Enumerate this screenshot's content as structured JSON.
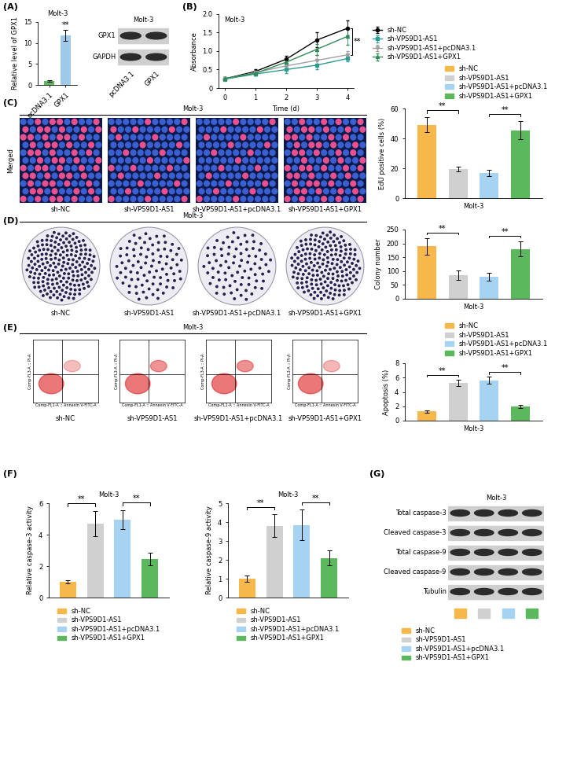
{
  "chart_data": [
    {
      "type": "bar",
      "panel_label": "(A)",
      "title": "Molt-3",
      "y_label": "Relative level of GPX1",
      "categories": [
        "pcDNA3.1",
        "GPX1"
      ],
      "values": [
        1.0,
        11.8
      ],
      "errors": [
        0.2,
        1.3
      ],
      "colors": [
        "#5cb85c",
        "#9ecae9"
      ],
      "ylim": [
        0,
        15
      ],
      "yticks": [
        0,
        5,
        10,
        15
      ],
      "annotations": [
        {
          "category": 1,
          "text": "**"
        }
      ]
    },
    {
      "type": "line",
      "panel_label": "(B)",
      "title": "Molt-3",
      "x_label": "Time (d)",
      "y_label": "Absorbance",
      "x": [
        0,
        1,
        2,
        3,
        4
      ],
      "xlim": [
        -0.2,
        4.2
      ],
      "xticks": [
        0,
        1,
        2,
        3,
        4
      ],
      "ylim": [
        0,
        2.0
      ],
      "yticks": [
        0,
        0.5,
        {
          "value": 1.0,
          "label": "1.0"
        },
        1.5,
        {
          "value": 2.0,
          "label": "2.0"
        }
      ],
      "legend": "right",
      "series": [
        {
          "name": "sh-NC",
          "color": "#000000",
          "marker": "o",
          "values": [
            0.25,
            0.45,
            0.78,
            1.3,
            1.62
          ],
          "errors": [
            0.04,
            0.06,
            0.1,
            0.2,
            0.2
          ]
        },
        {
          "name": "sh-VPS9D1-AS1",
          "color": "#2a9d8f",
          "marker": "s",
          "values": [
            0.24,
            0.38,
            0.5,
            0.62,
            0.8
          ],
          "errors": [
            0.03,
            0.05,
            0.1,
            0.12,
            0.08
          ]
        },
        {
          "name": "sh-VPS9D1-AS1+pcDNA3.1",
          "color": "#a0a0a0",
          "marker": "v",
          "values": [
            0.25,
            0.42,
            0.6,
            0.75,
            0.9
          ],
          "errors": [
            0.04,
            0.05,
            0.12,
            0.15,
            0.1
          ]
        },
        {
          "name": "sh-VPS9D1-AS1+GPX1",
          "color": "#2e8b57",
          "marker": "^",
          "values": [
            0.26,
            0.4,
            0.7,
            1.05,
            1.4
          ],
          "errors": [
            0.04,
            0.05,
            0.1,
            0.15,
            0.22
          ]
        }
      ],
      "significance": [
        {
          "series": [
            0,
            2
          ],
          "label": "**"
        }
      ]
    },
    {
      "type": "bar",
      "x_label": "Molt-3",
      "y_label": "EdU positive cells (%)",
      "categories": [
        "sh-NC",
        "sh-VPS9D1-AS1",
        "sh-VPS9D1-AS1+pcDNA3.1",
        "sh-VPS9D1-AS1+GPX1"
      ],
      "values": [
        49,
        19.5,
        17,
        45.5
      ],
      "errors": [
        5,
        1.5,
        2,
        6
      ],
      "colors": [
        "#f7b84b",
        "#d0d0d0",
        "#a6d3f2",
        "#5cb85c"
      ],
      "ylim": [
        0,
        60
      ],
      "yticks": [
        0,
        20,
        40,
        60
      ],
      "tick_labels": "y",
      "legend": "top",
      "significance": [
        {
          "pair": [
            0,
            1
          ],
          "label": "**"
        },
        {
          "pair": [
            2,
            3
          ],
          "label": "**"
        }
      ]
    },
    {
      "type": "bar",
      "x_label": "Molt-3",
      "y_label": "Colony number",
      "categories": [
        "sh-NC",
        "sh-VPS9D1-AS1",
        "sh-VPS9D1-AS1+pcDNA3.1",
        "sh-VPS9D1-AS1+GPX1"
      ],
      "values": [
        190,
        85,
        80,
        180
      ],
      "errors": [
        30,
        18,
        15,
        28
      ],
      "colors": [
        "#f7b84b",
        "#d0d0d0",
        "#a6d3f2",
        "#5cb85c"
      ],
      "ylim": [
        0,
        250
      ],
      "yticks": [
        0,
        50,
        100,
        150,
        200,
        250
      ],
      "tick_labels": "y",
      "significance": [
        {
          "pair": [
            0,
            1
          ],
          "label": "**"
        },
        {
          "pair": [
            2,
            3
          ],
          "label": "**"
        }
      ]
    },
    {
      "type": "bar",
      "x_label": "Molt-3",
      "y_label": "Apoptosis (%)",
      "categories": [
        "sh-NC",
        "sh-VPS9D1-AS1",
        "sh-VPS9D1-AS1+pcDNA3.1",
        "sh-VPS9D1-AS1+GPX1"
      ],
      "values": [
        1.3,
        5.3,
        5.6,
        2.0
      ],
      "errors": [
        0.15,
        0.45,
        0.5,
        0.2
      ],
      "colors": [
        "#f7b84b",
        "#d0d0d0",
        "#a6d3f2",
        "#5cb85c"
      ],
      "ylim": [
        0,
        8
      ],
      "yticks": [
        0,
        2,
        4,
        6,
        8
      ],
      "tick_labels": "y",
      "legend": "top",
      "significance": [
        {
          "pair": [
            0,
            1
          ],
          "label": "**"
        },
        {
          "pair": [
            2,
            3
          ],
          "label": "**"
        }
      ]
    },
    {
      "type": "bar",
      "panel_label": "(F)",
      "title": "Molt-3",
      "y_label": "Relative caspase-3 activity",
      "categories": [
        "sh-NC",
        "sh-VPS9D1-AS1",
        "sh-VPS9D1-AS1+pcDNA3.1",
        "sh-VPS9D1-AS1+GPX1"
      ],
      "values": [
        1.0,
        4.7,
        4.95,
        2.45
      ],
      "errors": [
        0.1,
        0.8,
        0.6,
        0.4
      ],
      "colors": [
        "#f7b84b",
        "#d0d0d0",
        "#a6d3f2",
        "#5cb85c"
      ],
      "ylim": [
        0,
        6
      ],
      "yticks": [
        0,
        2,
        4,
        6
      ],
      "tick_labels": "y",
      "legend": "bottom",
      "significance": [
        {
          "pair": [
            0,
            1
          ],
          "label": "**"
        },
        {
          "pair": [
            2,
            3
          ],
          "label": "**"
        }
      ]
    },
    {
      "type": "bar",
      "title": "Molt-3",
      "y_label": "Relative caspase-9 activity",
      "categories": [
        "sh-NC",
        "sh-VPS9D1-AS1",
        "sh-VPS9D1-AS1+pcDNA3.1",
        "sh-VPS9D1-AS1+GPX1"
      ],
      "values": [
        1.0,
        3.8,
        3.85,
        2.1
      ],
      "errors": [
        0.15,
        0.6,
        0.8,
        0.4
      ],
      "colors": [
        "#f7b84b",
        "#d0d0d0",
        "#a6d3f2",
        "#5cb85c"
      ],
      "ylim": [
        0,
        5
      ],
      "yticks": [
        0,
        1,
        2,
        3,
        4,
        5
      ],
      "tick_labels": "y",
      "legend": "bottom",
      "significance": [
        {
          "pair": [
            0,
            1
          ],
          "label": "**"
        },
        {
          "pair": [
            2,
            3
          ],
          "label": "**"
        }
      ]
    }
  ],
  "blot_A": {
    "title": "Molt-3",
    "rows": [
      "GPX1",
      "GAPDH"
    ],
    "lanes": [
      "pcDNA3.1",
      "GPX1"
    ]
  },
  "images_C": {
    "panel_label": "(C)",
    "title": "Molt-3",
    "row_label": "Merged",
    "labels": [
      "sh-NC",
      "sh-VPS9D1-AS1",
      "sh-VPS9D1-AS1+pcDNA3.1",
      "sh-VPS9D1-AS1+GPX1"
    ]
  },
  "images_D": {
    "panel_label": "(D)",
    "title": "Molt-3",
    "labels": [
      "sh-NC",
      "sh-VPS9D1-AS1",
      "sh-VPS9D1-AS1+pcDNA3.1",
      "sh-VPS9D1-AS1+GPX1"
    ]
  },
  "images_E": {
    "panel_label": "(E)",
    "title": "Molt-3",
    "x_label": "Comp-FL1-A :: Annexin V-FITC-A",
    "y_label": "Comp-FL3-A :: PI-A",
    "labels": [
      "sh-NC",
      "sh-VPS9D1-AS1",
      "sh-VPS9D1-AS1+pcDNA3.1",
      "sh-VPS9D1-AS1+GPX1"
    ]
  },
  "blot_G": {
    "panel_label": "(G)",
    "title": "Molt-3",
    "rows": [
      "Total caspase-3",
      "Cleaved caspase-3",
      "Total caspase-9",
      "Cleaved caspase-9",
      "Tubulin"
    ],
    "lanes": [
      "sh-NC",
      "sh-VPS9D1-AS1",
      "sh-VPS9D1-AS1+pcDNA3.1",
      "sh-VPS9D1-AS1+GPX1"
    ],
    "lane_colors": [
      "#f7b84b",
      "#d0d0d0",
      "#a6d3f2",
      "#5cb85c"
    ],
    "legend": "bottom"
  }
}
